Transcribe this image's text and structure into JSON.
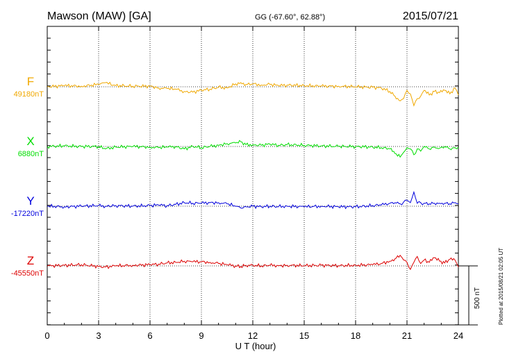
{
  "header": {
    "station": "Mawson (MAW)  [GA]",
    "coords": "GG (-67.60°,  62.88°)",
    "date": "2015/07/21"
  },
  "footer_note": "Plotted at 2015/08/21 02:05 UT",
  "scale_label": "500 nT",
  "chart_data": {
    "type": "line",
    "xlabel": "U T (hour)",
    "ylabel": "",
    "xlim": [
      0,
      24
    ],
    "x_ticks": [
      "0",
      "3",
      "6",
      "9",
      "12",
      "15",
      "18",
      "21",
      "24"
    ],
    "grid": true,
    "scale_bar_nT": 500,
    "series": [
      {
        "name": "F",
        "baseline_label": "49180nT",
        "color": "#f0a800",
        "baseline": 49180,
        "x": [
          0,
          1,
          2,
          3,
          3.4,
          4,
          5,
          6,
          6.5,
          7,
          7.5,
          8,
          8.5,
          9,
          9.5,
          10,
          10.5,
          11,
          11.3,
          11.6,
          12,
          12.5,
          13,
          13.5,
          14,
          15,
          16,
          17,
          18,
          19,
          19.5,
          20,
          20.3,
          20.6,
          20.8,
          21,
          21.2,
          21.4,
          21.6,
          21.8,
          22,
          22.3,
          22.6,
          22.9,
          23.2,
          23.5,
          23.8,
          24
        ],
        "values": [
          49180,
          49190,
          49185,
          49200,
          49215,
          49190,
          49185,
          49185,
          49170,
          49165,
          49160,
          49140,
          49135,
          49150,
          49160,
          49175,
          49170,
          49205,
          49215,
          49200,
          49205,
          49195,
          49200,
          49190,
          49195,
          49190,
          49185,
          49185,
          49180,
          49175,
          49170,
          49140,
          49100,
          49060,
          49080,
          49150,
          49120,
          49020,
          49080,
          49100,
          49150,
          49110,
          49140,
          49130,
          49150,
          49120,
          49170,
          49110
        ]
      },
      {
        "name": "X",
        "baseline_label": "6880nT",
        "color": "#00dd00",
        "baseline": 6880,
        "x": [
          0,
          1,
          2,
          3,
          3.4,
          4,
          5,
          6,
          6.5,
          7,
          7.5,
          8,
          8.5,
          9,
          9.5,
          10,
          10.5,
          11,
          11.3,
          11.6,
          12,
          12.5,
          13,
          13.5,
          14,
          15,
          16,
          17,
          18,
          19,
          19.5,
          20,
          20.3,
          20.6,
          20.8,
          21,
          21.2,
          21.4,
          21.6,
          21.8,
          22,
          22.3,
          22.6,
          22.9,
          23.2,
          23.5,
          23.8,
          24
        ],
        "values": [
          6880,
          6885,
          6880,
          6880,
          6860,
          6875,
          6880,
          6875,
          6870,
          6875,
          6880,
          6860,
          6880,
          6870,
          6880,
          6890,
          6905,
          6910,
          6920,
          6895,
          6895,
          6890,
          6900,
          6890,
          6895,
          6890,
          6885,
          6880,
          6880,
          6875,
          6870,
          6860,
          6820,
          6790,
          6830,
          6870,
          6860,
          6810,
          6860,
          6840,
          6880,
          6860,
          6875,
          6865,
          6880,
          6860,
          6870,
          6875
        ]
      },
      {
        "name": "Y",
        "baseline_label": "-17220nT",
        "color": "#0000dd",
        "baseline": -17220,
        "x": [
          0,
          1,
          2,
          3,
          3.4,
          4,
          5,
          6,
          6.5,
          7,
          7.5,
          8,
          8.5,
          9,
          9.5,
          10,
          10.5,
          11,
          11.3,
          11.6,
          12,
          12.5,
          13,
          13.5,
          14,
          15,
          16,
          17,
          18,
          19,
          19.5,
          20,
          20.3,
          20.6,
          20.8,
          21,
          21.2,
          21.4,
          21.6,
          21.8,
          22,
          22.3,
          22.6,
          22.9,
          23.2,
          23.5,
          23.8,
          24
        ],
        "values": [
          -17220,
          -17225,
          -17220,
          -17215,
          -17220,
          -17215,
          -17220,
          -17215,
          -17210,
          -17215,
          -17205,
          -17190,
          -17195,
          -17195,
          -17190,
          -17190,
          -17200,
          -17220,
          -17235,
          -17225,
          -17220,
          -17225,
          -17220,
          -17225,
          -17220,
          -17225,
          -17220,
          -17225,
          -17225,
          -17215,
          -17210,
          -17195,
          -17190,
          -17200,
          -17185,
          -17170,
          -17190,
          -17100,
          -17195,
          -17190,
          -17195,
          -17200,
          -17195,
          -17195,
          -17195,
          -17200,
          -17190,
          -17200
        ]
      },
      {
        "name": "Z",
        "baseline_label": "-45550nT",
        "color": "#dd0000",
        "baseline": -45550,
        "x": [
          0,
          1,
          2,
          3,
          3.4,
          4,
          5,
          6,
          6.5,
          7,
          7.5,
          8,
          8.5,
          9,
          9.5,
          10,
          10.5,
          11,
          11.3,
          11.6,
          12,
          12.5,
          13,
          13.5,
          14,
          15,
          16,
          17,
          18,
          19,
          19.5,
          20,
          20.3,
          20.6,
          20.8,
          21,
          21.2,
          21.4,
          21.6,
          21.8,
          22,
          22.3,
          22.6,
          22.9,
          23.2,
          23.5,
          23.8,
          24
        ],
        "values": [
          -45550,
          -45545,
          -45540,
          -45555,
          -45560,
          -45550,
          -45545,
          -45540,
          -45535,
          -45525,
          -45520,
          -45510,
          -45515,
          -45515,
          -45520,
          -45530,
          -45540,
          -45550,
          -45555,
          -45545,
          -45545,
          -45550,
          -45545,
          -45548,
          -45545,
          -45548,
          -45545,
          -45548,
          -45545,
          -45540,
          -45530,
          -45510,
          -45490,
          -45460,
          -45500,
          -45520,
          -45580,
          -45520,
          -45470,
          -45530,
          -45500,
          -45520,
          -45480,
          -45510,
          -45525,
          -45495,
          -45500,
          -45560
        ]
      }
    ]
  }
}
